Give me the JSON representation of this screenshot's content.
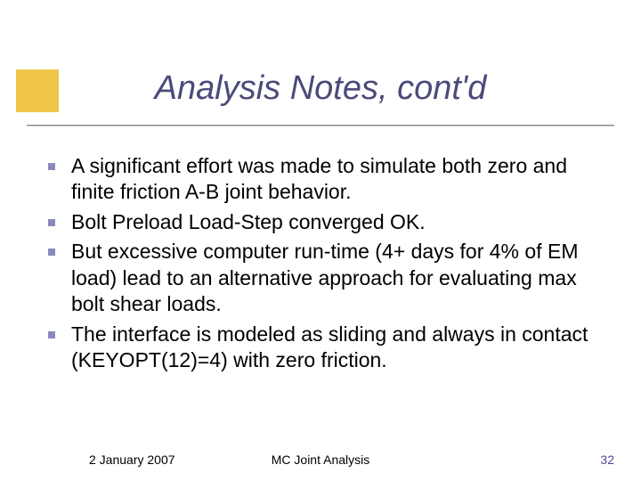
{
  "accent_color": "#f0c64a",
  "title_color": "#4a4a7a",
  "bullet_color": "#8a8ac0",
  "page_num_color": "#4a4a9a",
  "title": "Analysis Notes, cont'd",
  "bullets": [
    "A significant effort was made to simulate both zero and finite friction A-B joint behavior.",
    "Bolt Preload Load-Step converged OK.",
    "But excessive computer run-time (4+ days for 4% of EM load) lead to an alternative approach for evaluating max bolt shear loads.",
    "The interface is modeled as sliding and always in contact (KEYOPT(12)=4) with zero friction."
  ],
  "footer": {
    "date": "2 January 2007",
    "center": "MC Joint Analysis",
    "page": "32"
  }
}
